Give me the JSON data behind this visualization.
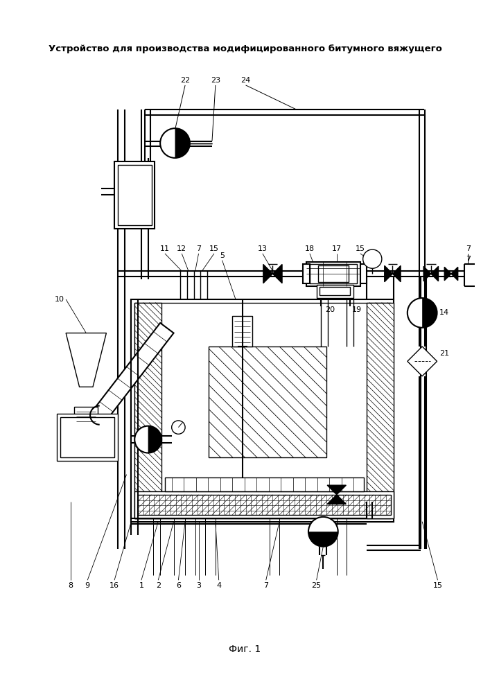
{
  "title": "Устройство для производства модифицированного битумного вяжущего",
  "subtitle": "Фиг. 1",
  "bg_color": "#ffffff",
  "line_color": "#000000",
  "title_fontsize": 9.5,
  "subtitle_fontsize": 10
}
